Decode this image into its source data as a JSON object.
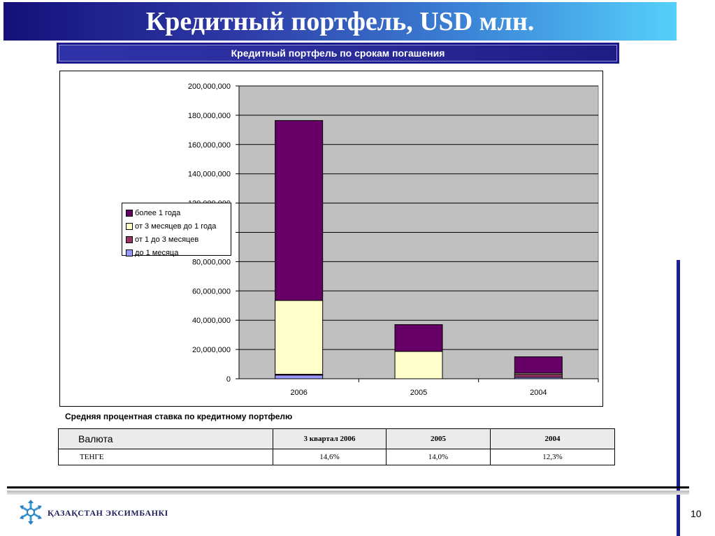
{
  "header": {
    "title": "Кредитный портфель, USD млн.",
    "subtitle": "Кредитный портфель по срокам погашения"
  },
  "chart_data": {
    "type": "bar",
    "stacked": true,
    "categories": [
      "2006",
      "2005",
      "2004"
    ],
    "ylim": [
      0,
      200000000
    ],
    "yticks": [
      "0",
      "20,000,000",
      "40,000,000",
      "60,000,000",
      "80,000,000",
      "100,000,000",
      "120,000,000",
      "140,000,000",
      "160,000,000",
      "180,000,000",
      "200,000,000"
    ],
    "grid": true,
    "legend_position": "left",
    "series": [
      {
        "name": "до 1 месяца",
        "color": "#9999ff",
        "values": [
          2500000,
          0,
          1000000
        ]
      },
      {
        "name": "от 1 до 3 месяцев",
        "color": "#993366",
        "values": [
          600000,
          0,
          2000000
        ]
      },
      {
        "name": "от 3 месяцев до 1 года",
        "color": "#ffffcc",
        "values": [
          50400000,
          18700000,
          800000
        ]
      },
      {
        "name": "более 1 года",
        "color": "#660066",
        "values": [
          122900000,
          18300000,
          11200000
        ]
      }
    ],
    "legend_order": [
      "более 1 года",
      "от 3 месяцев до 1 года",
      "от 1 до 3 месяцев",
      "до 1 месяца"
    ],
    "plot_background": "#c0c0c0"
  },
  "rates": {
    "title": "Средняя процентная ставка по кредитному портфелю",
    "header": [
      "Валюта",
      "3 квартал  2006",
      "2005",
      "2004"
    ],
    "rows": [
      [
        "ТЕНГЕ",
        "14,6%",
        "14,0%",
        "12,3%"
      ]
    ]
  },
  "footer": {
    "brand": "ҚАЗАҚСТАН ЭКСИМБАНКІ",
    "page_number": "10",
    "logo_icon": "snowflake-logo-icon"
  },
  "colors": {
    "title_gradient_start": "#15107a",
    "title_gradient_end": "#55d0fa",
    "accent_bar": "#1e1e96"
  }
}
